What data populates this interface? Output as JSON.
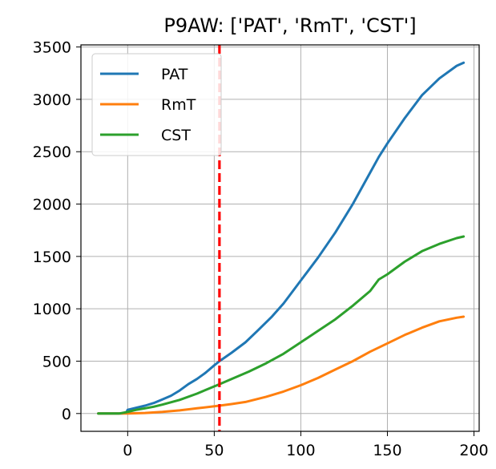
{
  "chart_data": {
    "type": "line",
    "title": "P9AW: ['PAT', 'RmT', 'CST']",
    "xlabel": "",
    "ylabel": "",
    "xlim": [
      -27,
      203
    ],
    "ylim": [
      -170,
      3520
    ],
    "xticks": [
      0,
      50,
      100,
      150,
      200
    ],
    "yticks": [
      0,
      500,
      1000,
      1500,
      2000,
      2500,
      3000,
      3500
    ],
    "grid": true,
    "legend": "top-left",
    "vline": {
      "x": 53,
      "color": "#ff0000",
      "style": "dashed"
    },
    "series": [
      {
        "name": "PAT",
        "color": "#1f77b4",
        "points": [
          [
            -17,
            0
          ],
          [
            -10,
            0
          ],
          [
            -5,
            0
          ],
          [
            -1,
            2
          ],
          [
            0,
            35
          ],
          [
            5,
            55
          ],
          [
            10,
            75
          ],
          [
            15,
            100
          ],
          [
            20,
            135
          ],
          [
            25,
            170
          ],
          [
            30,
            220
          ],
          [
            35,
            280
          ],
          [
            40,
            330
          ],
          [
            45,
            390
          ],
          [
            50,
            460
          ],
          [
            53,
            500
          ],
          [
            60,
            580
          ],
          [
            68,
            680
          ],
          [
            75,
            790
          ],
          [
            83,
            920
          ],
          [
            90,
            1050
          ],
          [
            100,
            1270
          ],
          [
            110,
            1490
          ],
          [
            120,
            1730
          ],
          [
            130,
            2000
          ],
          [
            140,
            2300
          ],
          [
            145,
            2450
          ],
          [
            150,
            2580
          ],
          [
            160,
            2820
          ],
          [
            170,
            3040
          ],
          [
            180,
            3200
          ],
          [
            190,
            3320
          ],
          [
            194,
            3350
          ]
        ]
      },
      {
        "name": "RmT",
        "color": "#ff7f0e",
        "points": [
          [
            -17,
            0
          ],
          [
            -10,
            0
          ],
          [
            -5,
            0
          ],
          [
            0,
            0
          ],
          [
            10,
            5
          ],
          [
            20,
            15
          ],
          [
            30,
            30
          ],
          [
            40,
            50
          ],
          [
            53,
            75
          ],
          [
            60,
            90
          ],
          [
            68,
            110
          ],
          [
            80,
            160
          ],
          [
            90,
            210
          ],
          [
            100,
            270
          ],
          [
            110,
            340
          ],
          [
            120,
            420
          ],
          [
            130,
            500
          ],
          [
            140,
            590
          ],
          [
            150,
            670
          ],
          [
            160,
            750
          ],
          [
            170,
            820
          ],
          [
            180,
            880
          ],
          [
            190,
            915
          ],
          [
            194,
            925
          ]
        ]
      },
      {
        "name": "CST",
        "color": "#2ca02c",
        "points": [
          [
            -17,
            0
          ],
          [
            -10,
            0
          ],
          [
            -5,
            0
          ],
          [
            0,
            15
          ],
          [
            5,
            35
          ],
          [
            10,
            50
          ],
          [
            15,
            65
          ],
          [
            20,
            85
          ],
          [
            30,
            130
          ],
          [
            40,
            190
          ],
          [
            53,
            280
          ],
          [
            60,
            330
          ],
          [
            70,
            400
          ],
          [
            80,
            480
          ],
          [
            90,
            570
          ],
          [
            100,
            680
          ],
          [
            110,
            790
          ],
          [
            120,
            900
          ],
          [
            130,
            1030
          ],
          [
            140,
            1170
          ],
          [
            145,
            1280
          ],
          [
            150,
            1330
          ],
          [
            160,
            1450
          ],
          [
            170,
            1550
          ],
          [
            180,
            1620
          ],
          [
            190,
            1675
          ],
          [
            194,
            1690
          ]
        ]
      }
    ]
  }
}
